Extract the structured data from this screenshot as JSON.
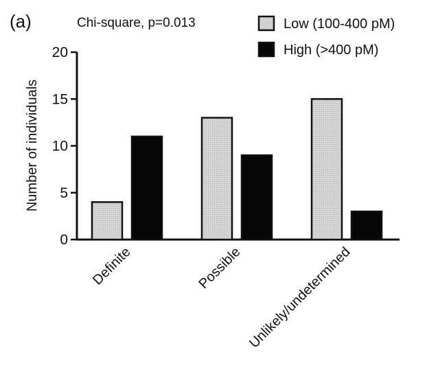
{
  "panel_label": "(a)",
  "annotation": "Chi-square, p=0.013",
  "colors": {
    "low_fill": "#d4d4d4",
    "high_fill": "#050505",
    "axis": "#111111"
  },
  "chart_data": {
    "type": "bar",
    "categories": [
      "Definite",
      "Possible",
      "Unlikely/undetermined"
    ],
    "series": [
      {
        "name": "Low (100-400 pM)",
        "values": [
          4,
          13,
          15
        ],
        "color": "#d4d4d4"
      },
      {
        "name": "High (>400 pM)",
        "values": [
          11,
          9,
          3
        ],
        "color": "#050505"
      }
    ],
    "ylabel": "Number of individuals",
    "xlabel": "",
    "ylim": [
      0,
      20
    ],
    "yticks": [
      0,
      5,
      10,
      15,
      20
    ],
    "grid": false,
    "legend": "top-right"
  }
}
